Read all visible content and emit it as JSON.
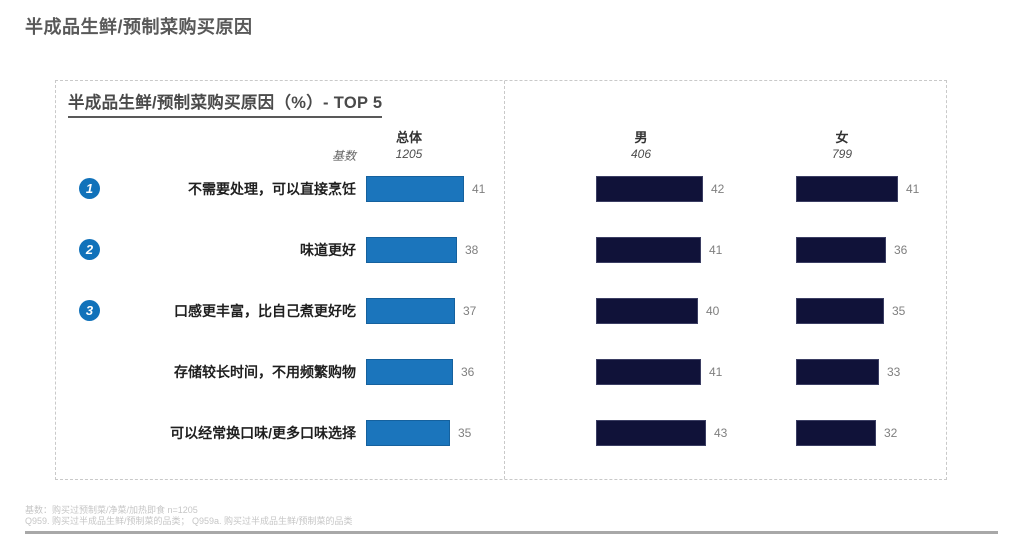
{
  "page": {
    "title": "半成品生鲜/预制菜购买原因"
  },
  "panel": {
    "title": "半成品生鲜/预制菜购买原因（%）- TOP 5",
    "base_label": "基数",
    "columns": [
      {
        "label": "总体",
        "base": "1205"
      },
      {
        "label": "男",
        "base": "406"
      },
      {
        "label": "女",
        "base": "799"
      }
    ]
  },
  "chart_data": {
    "type": "bar",
    "orientation": "horizontal",
    "title": "半成品生鲜/预制菜购买原因（%）- TOP 5",
    "unit": "%",
    "categories": [
      "不需要处理，可以直接烹饪",
      "味道更好",
      "口感更丰富，比自己煮更好吃",
      "存储较长时间，不用频繁购物",
      "可以经常换口味/更多口味选择"
    ],
    "ranks": [
      "1",
      "2",
      "3",
      "",
      ""
    ],
    "series": [
      {
        "name": "总体",
        "base": 1205,
        "color": "#1B75BC",
        "values": [
          41,
          38,
          37,
          36,
          35
        ]
      },
      {
        "name": "男",
        "base": 406,
        "color": "#101239",
        "values": [
          42,
          41,
          40,
          41,
          43
        ]
      },
      {
        "name": "女",
        "base": 799,
        "color": "#101239",
        "values": [
          41,
          36,
          35,
          33,
          32
        ]
      }
    ],
    "legend": "none",
    "grid": false,
    "value_labels": "outside-end"
  },
  "footer": {
    "line1": "基数：购买过预制菜/净菜/加热即食 n=1205",
    "line2": "Q959. 购买过半成品生鲜/预制菜的品类； Q959a. 购买过半成品生鲜/预制菜的品类"
  },
  "colors": {
    "accent_blue": "#1B75BC",
    "navy": "#101239",
    "badge_blue": "#1172BA",
    "title_gray": "#595959",
    "value_gray": "#7f7f7f",
    "dashed_border": "#c9c9c9",
    "footer_gray": "#c6c6c6"
  }
}
